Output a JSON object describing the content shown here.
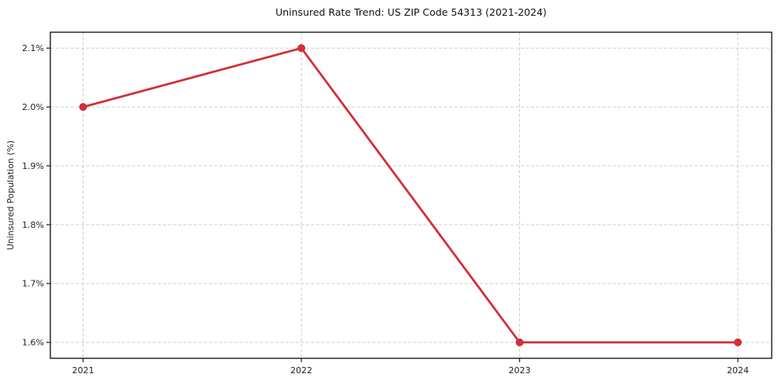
{
  "chart_data": {
    "type": "line",
    "title": "Uninsured Rate Trend: US ZIP Code 54313 (2021-2024)",
    "xlabel": "",
    "ylabel": "Uninsured Population (%)",
    "x": [
      2021,
      2022,
      2023,
      2024
    ],
    "x_tick_labels": [
      "2021",
      "2022",
      "2023",
      "2024"
    ],
    "series": [
      {
        "name": "uninsured-rate",
        "values": [
          2.0,
          2.1,
          1.6,
          1.6
        ],
        "color": "#d1303c",
        "marker": "circle"
      }
    ],
    "y_ticks": [
      1.6,
      1.7,
      1.8,
      1.9,
      2.0,
      2.1
    ],
    "y_tick_labels": [
      "1.6%",
      "1.7%",
      "1.8%",
      "1.9%",
      "2.0%",
      "2.1%"
    ],
    "xlim": [
      2020.85,
      2024.155
    ],
    "ylim": [
      1.573,
      2.127
    ],
    "grid": true,
    "grid_style": "dashed",
    "legend": "none",
    "colors": {
      "grid": "#cdcdcd",
      "axis": "#1a1a1a",
      "tick_label": "#222222",
      "background": "#ffffff"
    }
  }
}
